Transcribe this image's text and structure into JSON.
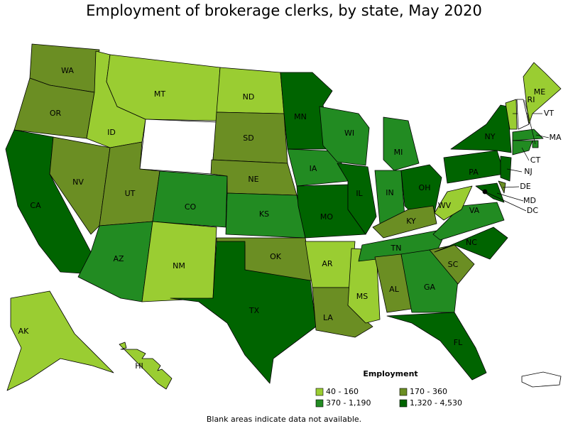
{
  "title": "Employment of brokerage clerks, by state, May 2020",
  "legend": {
    "title": "Employment",
    "items": [
      {
        "label": "40 - 160",
        "color": "#9acd32"
      },
      {
        "label": "170 - 360",
        "color": "#6b8e23"
      },
      {
        "label": "370 - 1,190",
        "color": "#228b22"
      },
      {
        "label": "1,320 - 4,530",
        "color": "#006400"
      }
    ]
  },
  "footnote": "Blank areas indicate data not available.",
  "states": [
    {
      "label": "WA",
      "color": "#6b8e23"
    },
    {
      "label": "OR",
      "color": "#6b8e23"
    },
    {
      "label": "CA",
      "color": "#006400"
    },
    {
      "label": "NV",
      "color": "#6b8e23"
    },
    {
      "label": "ID",
      "color": "#9acd32"
    },
    {
      "label": "MT",
      "color": "#9acd32"
    },
    {
      "label": null,
      "color": "#ffffff"
    },
    {
      "label": "UT",
      "color": "#6b8e23"
    },
    {
      "label": "CO",
      "color": "#228b22"
    },
    {
      "label": "AZ",
      "color": "#228b22"
    },
    {
      "label": "NM",
      "color": "#9acd32"
    },
    {
      "label": "ND",
      "color": "#9acd32"
    },
    {
      "label": "SD",
      "color": "#6b8e23"
    },
    {
      "label": "NE",
      "color": "#6b8e23"
    },
    {
      "label": "KS",
      "color": "#228b22"
    },
    {
      "label": "OK",
      "color": "#6b8e23"
    },
    {
      "label": "TX",
      "color": "#006400"
    },
    {
      "label": "MN",
      "color": "#006400"
    },
    {
      "label": "IA",
      "color": "#228b22"
    },
    {
      "label": "MO",
      "color": "#006400"
    },
    {
      "label": "AR",
      "color": "#9acd32"
    },
    {
      "label": "LA",
      "color": "#6b8e23"
    },
    {
      "label": "MS",
      "color": "#9acd32"
    },
    {
      "label": "WI",
      "color": "#228b22"
    },
    {
      "label": "IL",
      "color": "#006400"
    },
    {
      "label": "MI",
      "color": "#228b22"
    },
    {
      "label": "IN",
      "color": "#228b22"
    },
    {
      "label": "OH",
      "color": "#006400"
    },
    {
      "label": "KY",
      "color": "#6b8e23"
    },
    {
      "label": "TN",
      "color": "#228b22"
    },
    {
      "label": "AL",
      "color": "#6b8e23"
    },
    {
      "label": "GA",
      "color": "#228b22"
    },
    {
      "label": "FL",
      "color": "#006400"
    },
    {
      "label": "SC",
      "color": "#6b8e23"
    },
    {
      "label": "NC",
      "color": "#006400"
    },
    {
      "label": "VA",
      "color": "#228b22"
    },
    {
      "label": "WV",
      "color": "#9acd32"
    },
    {
      "label": "PA",
      "color": "#006400"
    },
    {
      "label": "NY",
      "color": "#006400"
    },
    {
      "label": "VT",
      "color": "#9acd32"
    },
    {
      "label": null,
      "color": "#ffffff"
    },
    {
      "label": "ME",
      "color": "#9acd32"
    },
    {
      "label": "MA",
      "color": "#228b22"
    },
    {
      "label": "RI",
      "color": "#228b22"
    },
    {
      "label": "CT",
      "color": "#228b22"
    },
    {
      "label": "NJ",
      "color": "#006400"
    },
    {
      "label": "DE",
      "color": "#6b8e23"
    },
    {
      "label": "MD",
      "color": "#006400"
    },
    {
      "label": "DC",
      "color": "#000000"
    },
    {
      "label": "AK",
      "color": "#9acd32"
    },
    {
      "label": "HI",
      "color": "#9acd32"
    }
  ]
}
